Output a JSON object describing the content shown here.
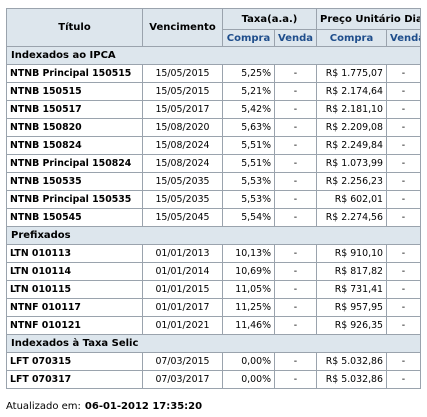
{
  "headers": {
    "titulo": "Título",
    "vencimento": "Vencimento",
    "taxa": "Taxa(a.a.)",
    "preco": "Preço Unitário Dia",
    "compra": "Compra",
    "venda": "Venda"
  },
  "sections": [
    {
      "title": "Indexados ao IPCA",
      "rows": [
        {
          "titulo": "NTNB Principal 150515",
          "vencimento": "15/05/2015",
          "taxa_compra": "5,25%",
          "taxa_venda": "-",
          "preco_compra": "R$ 1.775,07",
          "preco_venda": "-"
        },
        {
          "titulo": "NTNB 150515",
          "vencimento": "15/05/2015",
          "taxa_compra": "5,21%",
          "taxa_venda": "-",
          "preco_compra": "R$ 2.174,64",
          "preco_venda": "-"
        },
        {
          "titulo": "NTNB 150517",
          "vencimento": "15/05/2017",
          "taxa_compra": "5,42%",
          "taxa_venda": "-",
          "preco_compra": "R$ 2.181,10",
          "preco_venda": "-"
        },
        {
          "titulo": "NTNB 150820",
          "vencimento": "15/08/2020",
          "taxa_compra": "5,63%",
          "taxa_venda": "-",
          "preco_compra": "R$ 2.209,08",
          "preco_venda": "-"
        },
        {
          "titulo": "NTNB 150824",
          "vencimento": "15/08/2024",
          "taxa_compra": "5,51%",
          "taxa_venda": "-",
          "preco_compra": "R$ 2.249,84",
          "preco_venda": "-"
        },
        {
          "titulo": "NTNB Principal 150824",
          "vencimento": "15/08/2024",
          "taxa_compra": "5,51%",
          "taxa_venda": "-",
          "preco_compra": "R$ 1.073,99",
          "preco_venda": "-"
        },
        {
          "titulo": "NTNB 150535",
          "vencimento": "15/05/2035",
          "taxa_compra": "5,53%",
          "taxa_venda": "-",
          "preco_compra": "R$ 2.256,23",
          "preco_venda": "-"
        },
        {
          "titulo": "NTNB Principal 150535",
          "vencimento": "15/05/2035",
          "taxa_compra": "5,53%",
          "taxa_venda": "-",
          "preco_compra": "R$ 602,01",
          "preco_venda": "-"
        },
        {
          "titulo": "NTNB 150545",
          "vencimento": "15/05/2045",
          "taxa_compra": "5,54%",
          "taxa_venda": "-",
          "preco_compra": "R$ 2.274,56",
          "preco_venda": "-"
        }
      ]
    },
    {
      "title": "Prefixados",
      "rows": [
        {
          "titulo": "LTN 010113",
          "vencimento": "01/01/2013",
          "taxa_compra": "10,13%",
          "taxa_venda": "-",
          "preco_compra": "R$ 910,10",
          "preco_venda": "-"
        },
        {
          "titulo": "LTN 010114",
          "vencimento": "01/01/2014",
          "taxa_compra": "10,69%",
          "taxa_venda": "-",
          "preco_compra": "R$ 817,82",
          "preco_venda": "-"
        },
        {
          "titulo": "LTN 010115",
          "vencimento": "01/01/2015",
          "taxa_compra": "11,05%",
          "taxa_venda": "-",
          "preco_compra": "R$ 731,41",
          "preco_venda": "-"
        },
        {
          "titulo": "NTNF 010117",
          "vencimento": "01/01/2017",
          "taxa_compra": "11,25%",
          "taxa_venda": "-",
          "preco_compra": "R$ 957,95",
          "preco_venda": "-"
        },
        {
          "titulo": "NTNF 010121",
          "vencimento": "01/01/2021",
          "taxa_compra": "11,46%",
          "taxa_venda": "-",
          "preco_compra": "R$ 926,35",
          "preco_venda": "-"
        }
      ]
    },
    {
      "title": "Indexados à Taxa Selic",
      "rows": [
        {
          "titulo": "LFT 070315",
          "vencimento": "07/03/2015",
          "taxa_compra": "0,00%",
          "taxa_venda": "-",
          "preco_compra": "R$ 5.032,86",
          "preco_venda": "-"
        },
        {
          "titulo": "LFT 070317",
          "vencimento": "07/03/2017",
          "taxa_compra": "0,00%",
          "taxa_venda": "-",
          "preco_compra": "R$ 5.032,86",
          "preco_venda": "-"
        }
      ]
    }
  ],
  "footer": {
    "label": "Atualizado em:",
    "timestamp": "06-01-2012 17:35:20"
  }
}
